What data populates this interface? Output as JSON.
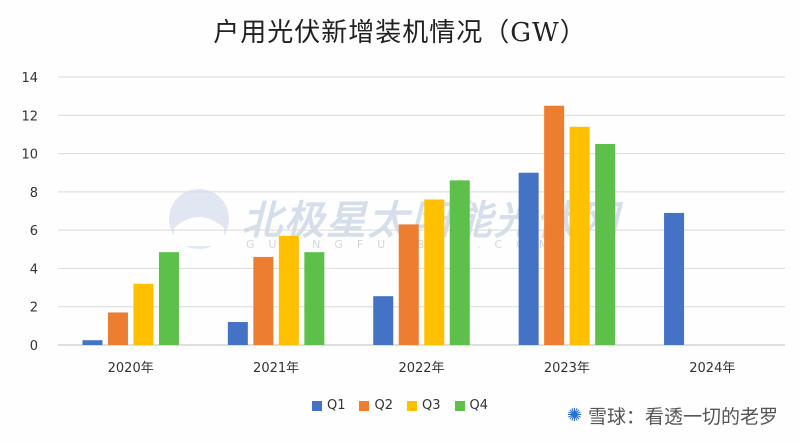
{
  "title": "户用光伏新增装机情况（GW）",
  "watermark": {
    "text": "北极星太阳能光伏网",
    "sub": "GUANGFU.BJX.COM.CN"
  },
  "credit": "雪球：看透一切的老罗",
  "colors": {
    "Q1": "#4472C4",
    "Q2": "#ED7D31",
    "Q3": "#FFC000",
    "Q4": "#5DC04A",
    "grid": "#d9d9d9",
    "axis": "#bfbfbf"
  },
  "chart_data": {
    "type": "bar",
    "categories": [
      "2020年",
      "2021年",
      "2022年",
      "2023年",
      "2024年"
    ],
    "series": [
      {
        "name": "Q1",
        "values": [
          0.25,
          1.2,
          2.55,
          9.0,
          6.9
        ]
      },
      {
        "name": "Q2",
        "values": [
          1.7,
          4.6,
          6.3,
          12.5,
          null
        ]
      },
      {
        "name": "Q3",
        "values": [
          3.2,
          5.7,
          7.6,
          11.4,
          null
        ]
      },
      {
        "name": "Q4",
        "values": [
          4.85,
          4.85,
          8.6,
          10.5,
          null
        ]
      }
    ],
    "yticks": [
      0,
      2,
      4,
      6,
      8,
      10,
      12,
      14
    ],
    "ylim": [
      0,
      14
    ],
    "grid": true,
    "legend": "bottom"
  }
}
